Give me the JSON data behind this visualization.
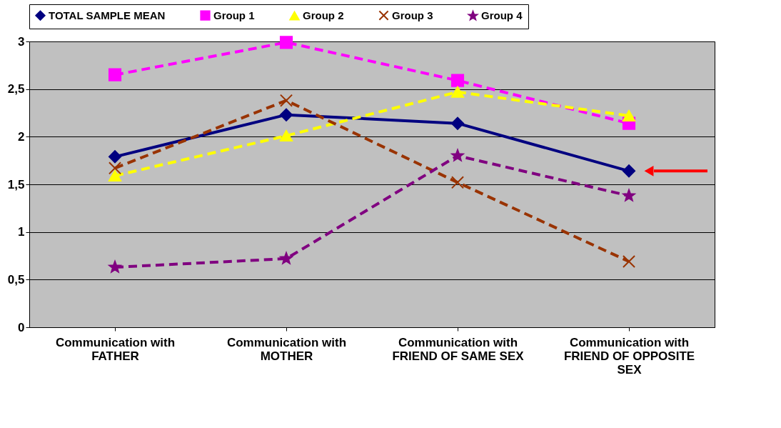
{
  "chart_data": {
    "type": "line",
    "categories": [
      "Communication with FATHER",
      "Communication with MOTHER",
      "Communication with FRIEND OF SAME SEX",
      "Communication with FRIEND OF OPPOSITE SEX"
    ],
    "series": [
      {
        "name": "TOTAL SAMPLE MEAN",
        "color": "#000080",
        "marker": "diamond",
        "line_style": "solid",
        "values": [
          1.79,
          2.23,
          2.14,
          1.64
        ]
      },
      {
        "name": "Group 1",
        "color": "#ff00ff",
        "marker": "square",
        "line_style": "dashed",
        "values": [
          2.65,
          2.99,
          2.59,
          2.14
        ]
      },
      {
        "name": "Group 2",
        "color": "#ffff00",
        "marker": "triangle",
        "line_style": "dashed",
        "values": [
          1.59,
          2.01,
          2.47,
          2.22
        ]
      },
      {
        "name": "Group 3",
        "color": "#993300",
        "marker": "cross",
        "line_style": "dashed",
        "values": [
          1.67,
          2.38,
          1.52,
          0.69
        ]
      },
      {
        "name": "Group 4",
        "color": "#800080",
        "marker": "star",
        "line_style": "dashed",
        "values": [
          0.63,
          0.72,
          1.8,
          1.38
        ]
      }
    ],
    "ylim": [
      0,
      3
    ],
    "yticks": [
      0,
      {
        "value": 0.5,
        "label": "0,5"
      },
      1,
      {
        "value": 1.5,
        "label": "1,5"
      },
      2,
      {
        "value": 2.5,
        "label": "2,5"
      },
      3
    ],
    "grid": "y",
    "legend": "top"
  }
}
